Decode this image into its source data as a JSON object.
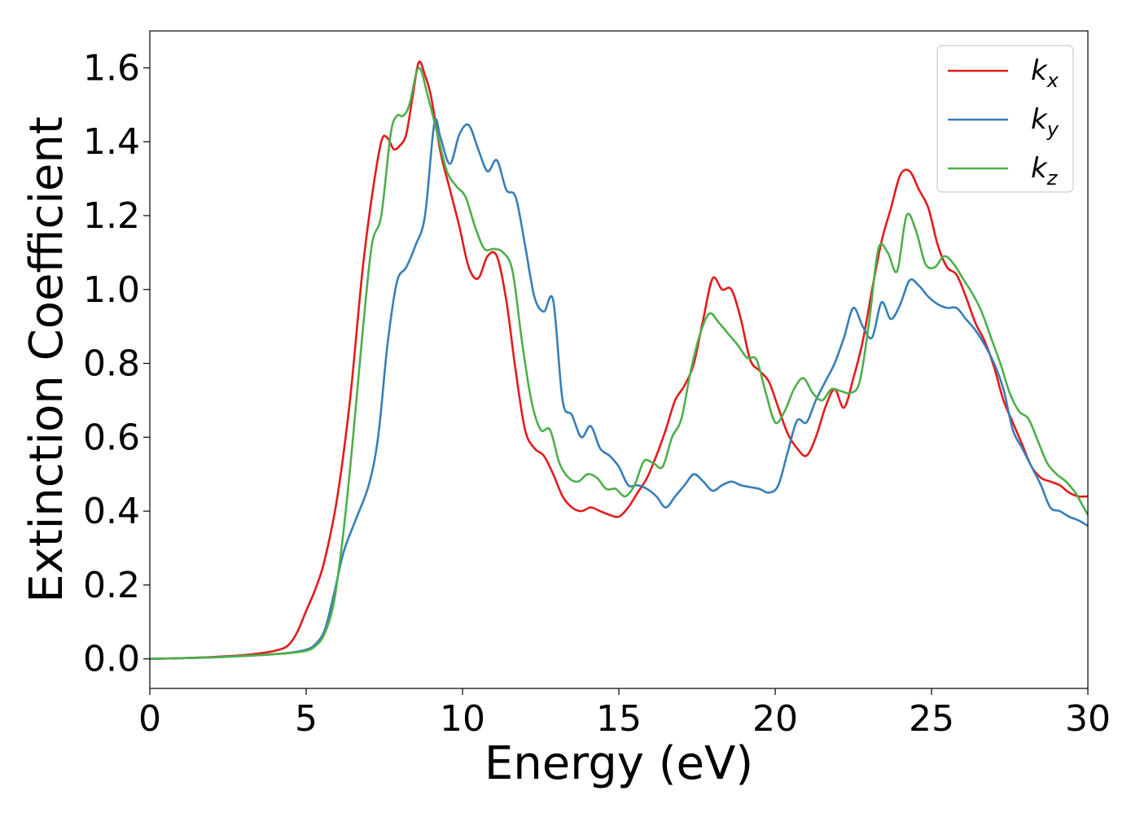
{
  "chart_data": {
    "type": "line",
    "title": "",
    "xlabel": "Energy (eV)",
    "ylabel": "Extinction Coefficient",
    "xlim": [
      0,
      30
    ],
    "ylim": [
      -0.08,
      1.7
    ],
    "xticks": [
      0,
      5,
      10,
      15,
      20,
      25,
      30
    ],
    "yticks": [
      0.0,
      0.2,
      0.4,
      0.6,
      0.8,
      1.0,
      1.2,
      1.4,
      1.6
    ],
    "xtick_labels": [
      "0",
      "5",
      "10",
      "15",
      "20",
      "25",
      "30"
    ],
    "ytick_labels": [
      "0.0",
      "0.2",
      "0.4",
      "0.6",
      "0.8",
      "1.0",
      "1.2",
      "1.4",
      "1.6"
    ],
    "grid": false,
    "legend_position": "top-right",
    "series": [
      {
        "name": "k_x",
        "legend_base": "k",
        "legend_sub": "x",
        "color": "#e41a1c",
        "x": [
          0,
          1,
          2,
          3,
          3.5,
          4,
          4.4,
          4.7,
          5.0,
          5.3,
          5.6,
          6.0,
          6.4,
          6.8,
          7.1,
          7.4,
          7.6,
          7.8,
          8.0,
          8.2,
          8.4,
          8.6,
          8.8,
          9.0,
          9.3,
          9.6,
          9.9,
          10.2,
          10.5,
          10.8,
          11.1,
          11.4,
          11.7,
          12.0,
          12.3,
          12.6,
          12.9,
          13.2,
          13.5,
          13.8,
          14.1,
          14.4,
          14.7,
          15.0,
          15.3,
          15.6,
          15.9,
          16.2,
          16.5,
          16.8,
          17.1,
          17.4,
          17.7,
          18.0,
          18.3,
          18.6,
          18.9,
          19.2,
          19.5,
          19.8,
          20.1,
          20.4,
          20.7,
          21.0,
          21.3,
          21.6,
          21.9,
          22.2,
          22.5,
          22.8,
          23.1,
          23.4,
          23.7,
          24.0,
          24.3,
          24.6,
          24.9,
          25.2,
          25.5,
          25.8,
          26.1,
          26.4,
          26.7,
          27.0,
          27.3,
          27.6,
          27.9,
          28.2,
          28.5,
          28.8,
          29.1,
          29.4,
          29.7,
          30.0
        ],
        "y": [
          0.0,
          0.002,
          0.005,
          0.01,
          0.015,
          0.022,
          0.035,
          0.07,
          0.13,
          0.19,
          0.27,
          0.44,
          0.7,
          1.05,
          1.25,
          1.4,
          1.41,
          1.38,
          1.39,
          1.42,
          1.52,
          1.615,
          1.58,
          1.52,
          1.37,
          1.27,
          1.17,
          1.06,
          1.03,
          1.09,
          1.09,
          0.97,
          0.78,
          0.62,
          0.57,
          0.55,
          0.5,
          0.44,
          0.41,
          0.4,
          0.41,
          0.4,
          0.39,
          0.385,
          0.41,
          0.45,
          0.49,
          0.55,
          0.62,
          0.7,
          0.74,
          0.8,
          0.92,
          1.03,
          1.0,
          1.0,
          0.92,
          0.81,
          0.78,
          0.75,
          0.68,
          0.61,
          0.57,
          0.55,
          0.6,
          0.68,
          0.73,
          0.68,
          0.76,
          0.86,
          1.0,
          1.13,
          1.22,
          1.31,
          1.32,
          1.27,
          1.22,
          1.12,
          1.06,
          1.04,
          0.98,
          0.91,
          0.86,
          0.79,
          0.7,
          0.64,
          0.58,
          0.52,
          0.49,
          0.48,
          0.47,
          0.45,
          0.44,
          0.44
        ]
      },
      {
        "name": "k_y",
        "legend_base": "k",
        "legend_sub": "y",
        "color": "#377eb8",
        "x": [
          0,
          1,
          2,
          3,
          3.5,
          4,
          4.5,
          5.0,
          5.3,
          5.6,
          5.9,
          6.2,
          6.6,
          7.0,
          7.3,
          7.6,
          7.9,
          8.2,
          8.5,
          8.8,
          9.1,
          9.3,
          9.6,
          9.9,
          10.2,
          10.5,
          10.8,
          11.1,
          11.4,
          11.7,
          12.0,
          12.3,
          12.6,
          12.9,
          13.2,
          13.5,
          13.8,
          14.1,
          14.4,
          14.7,
          15.0,
          15.3,
          15.6,
          15.9,
          16.2,
          16.5,
          16.8,
          17.1,
          17.4,
          17.7,
          18.0,
          18.3,
          18.6,
          18.9,
          19.2,
          19.5,
          19.8,
          20.1,
          20.4,
          20.7,
          21.0,
          21.3,
          21.6,
          21.9,
          22.2,
          22.5,
          22.8,
          23.1,
          23.4,
          23.7,
          24.0,
          24.3,
          24.6,
          24.9,
          25.2,
          25.5,
          25.8,
          26.1,
          26.4,
          26.7,
          27.0,
          27.3,
          27.6,
          27.9,
          28.2,
          28.5,
          28.8,
          29.1,
          29.4,
          29.7,
          30.0
        ],
        "y": [
          0.0,
          0.002,
          0.004,
          0.008,
          0.01,
          0.013,
          0.017,
          0.025,
          0.04,
          0.08,
          0.18,
          0.29,
          0.38,
          0.47,
          0.6,
          0.85,
          1.02,
          1.06,
          1.12,
          1.2,
          1.45,
          1.41,
          1.34,
          1.42,
          1.445,
          1.38,
          1.32,
          1.35,
          1.27,
          1.25,
          1.12,
          0.98,
          0.94,
          0.97,
          0.7,
          0.66,
          0.6,
          0.63,
          0.57,
          0.55,
          0.52,
          0.47,
          0.47,
          0.46,
          0.44,
          0.41,
          0.44,
          0.47,
          0.5,
          0.48,
          0.455,
          0.47,
          0.48,
          0.47,
          0.465,
          0.46,
          0.45,
          0.47,
          0.56,
          0.645,
          0.64,
          0.7,
          0.75,
          0.8,
          0.87,
          0.95,
          0.9,
          0.87,
          0.965,
          0.92,
          0.96,
          1.025,
          1.01,
          0.98,
          0.96,
          0.95,
          0.95,
          0.92,
          0.89,
          0.85,
          0.8,
          0.73,
          0.62,
          0.57,
          0.52,
          0.47,
          0.41,
          0.4,
          0.385,
          0.375,
          0.36
        ]
      },
      {
        "name": "k_z",
        "legend_base": "k",
        "legend_sub": "z",
        "color": "#4daf4a",
        "x": [
          0,
          1,
          2,
          3,
          3.5,
          4,
          4.5,
          5.0,
          5.3,
          5.6,
          5.9,
          6.2,
          6.5,
          6.8,
          7.1,
          7.4,
          7.7,
          7.9,
          8.1,
          8.3,
          8.6,
          8.9,
          9.2,
          9.5,
          9.8,
          10.1,
          10.4,
          10.7,
          11.0,
          11.3,
          11.6,
          11.9,
          12.2,
          12.5,
          12.8,
          13.1,
          13.4,
          13.7,
          14.0,
          14.3,
          14.6,
          14.9,
          15.2,
          15.5,
          15.8,
          16.1,
          16.4,
          16.7,
          17.0,
          17.3,
          17.6,
          17.9,
          18.2,
          18.5,
          18.8,
          19.1,
          19.4,
          19.7,
          20.0,
          20.3,
          20.6,
          20.9,
          21.2,
          21.5,
          21.8,
          22.1,
          22.4,
          22.7,
          23.0,
          23.3,
          23.6,
          23.9,
          24.2,
          24.5,
          24.8,
          25.1,
          25.4,
          25.7,
          26.0,
          26.3,
          26.6,
          26.9,
          27.2,
          27.5,
          27.8,
          28.1,
          28.4,
          28.7,
          29.0,
          29.3,
          29.6,
          29.8,
          30.0
        ],
        "y": [
          0.0,
          0.002,
          0.004,
          0.008,
          0.01,
          0.013,
          0.016,
          0.022,
          0.035,
          0.07,
          0.16,
          0.35,
          0.6,
          0.88,
          1.12,
          1.2,
          1.42,
          1.47,
          1.47,
          1.5,
          1.6,
          1.52,
          1.42,
          1.32,
          1.28,
          1.25,
          1.17,
          1.11,
          1.11,
          1.1,
          1.05,
          0.86,
          0.7,
          0.62,
          0.62,
          0.53,
          0.49,
          0.48,
          0.5,
          0.49,
          0.46,
          0.46,
          0.44,
          0.47,
          0.535,
          0.53,
          0.52,
          0.6,
          0.65,
          0.78,
          0.88,
          0.935,
          0.91,
          0.88,
          0.85,
          0.815,
          0.81,
          0.72,
          0.64,
          0.67,
          0.73,
          0.76,
          0.72,
          0.7,
          0.73,
          0.725,
          0.72,
          0.75,
          0.91,
          1.11,
          1.1,
          1.05,
          1.2,
          1.16,
          1.07,
          1.06,
          1.09,
          1.07,
          1.03,
          0.99,
          0.94,
          0.87,
          0.8,
          0.72,
          0.67,
          0.65,
          0.59,
          0.53,
          0.5,
          0.48,
          0.45,
          0.42,
          0.39
        ]
      }
    ]
  }
}
